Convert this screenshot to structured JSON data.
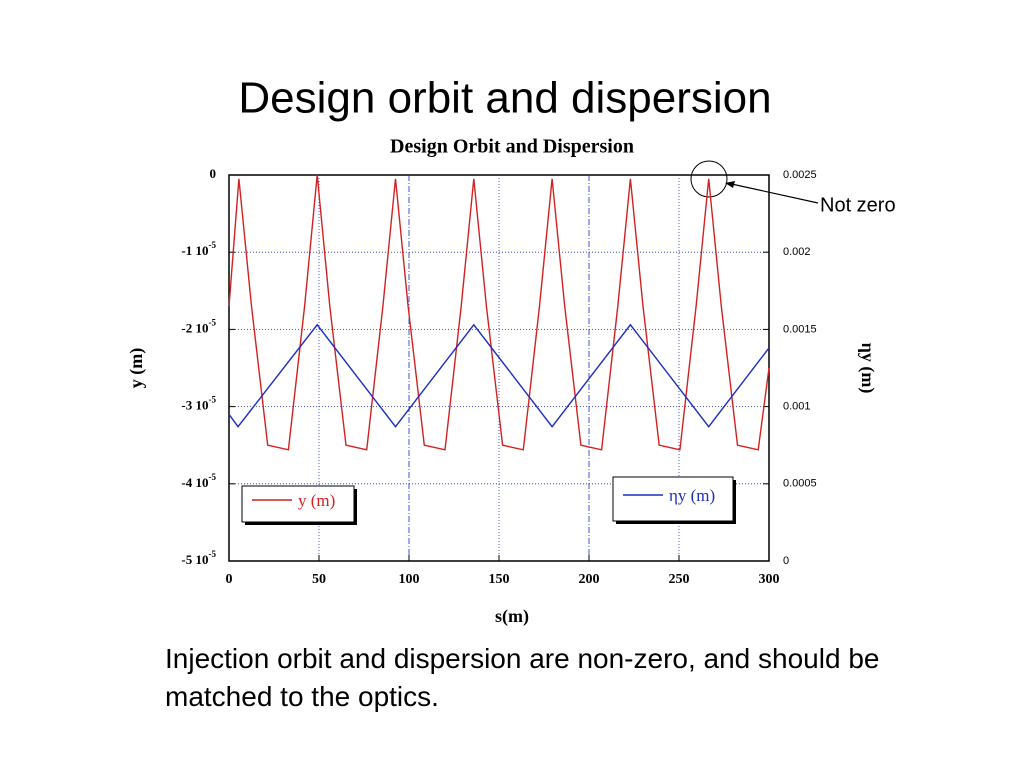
{
  "slide_title": "Design orbit and dispersion",
  "chart_data": {
    "type": "line",
    "title": "Design Orbit and Dispersion",
    "xlabel": "s(m)",
    "ylabel": "y (m)",
    "y2label": "ηy (m)",
    "xlim": [
      0,
      300
    ],
    "xticks": [
      0,
      50,
      100,
      150,
      200,
      250,
      300
    ],
    "ylim": [
      -5e-05,
      0
    ],
    "yticks": [
      {
        "value": -5e-05,
        "label": "-5 10-5"
      },
      {
        "value": -4e-05,
        "label": "-4 10-5"
      },
      {
        "value": -3e-05,
        "label": "-3 10-5"
      },
      {
        "value": -2e-05,
        "label": "-2 10-5"
      },
      {
        "value": -1e-05,
        "label": "-1 10-5"
      },
      0
    ],
    "y2lim": [
      0,
      0.0025
    ],
    "y2ticks": [
      0,
      0.0005,
      0.001,
      0.0015,
      0.002,
      0.0025
    ],
    "grid": true,
    "series": [
      {
        "name": "y (m)",
        "color": "#d42020",
        "x": [
          0,
          5.5,
          12.5,
          21.5,
          33,
          42,
          49,
          56,
          65,
          76.5,
          85.5,
          92.5,
          99.5,
          108.5,
          120,
          129,
          136,
          143,
          152,
          163.5,
          172.5,
          179.5,
          186.5,
          195.5,
          207,
          216,
          223,
          230,
          239,
          250.5,
          259.5,
          266.5,
          273.5,
          282.5,
          294,
          300
        ],
        "values": [
          -1.7e-05,
          -5e-07,
          -1.7e-05,
          -3.5e-05,
          -3.56e-05,
          -1.7e-05,
          0,
          -1.7e-05,
          -3.5e-05,
          -3.56e-05,
          -1.7e-05,
          -5e-07,
          -1.7e-05,
          -3.5e-05,
          -3.56e-05,
          -1.7e-05,
          -5e-07,
          -1.7e-05,
          -3.5e-05,
          -3.56e-05,
          -1.7e-05,
          -5e-07,
          -1.7e-05,
          -3.5e-05,
          -3.56e-05,
          -1.7e-05,
          -5e-07,
          -1.7e-05,
          -3.5e-05,
          -3.56e-05,
          -1.7e-05,
          -5e-07,
          -1.7e-05,
          -3.5e-05,
          -3.56e-05,
          -2.5e-05
        ]
      },
      {
        "name": "ηy (m)",
        "color": "#1a2ec0",
        "axis": "y2",
        "x": [
          0,
          5,
          49,
          92.5,
          136,
          179.5,
          223,
          266.5,
          300
        ],
        "values": [
          0.00095,
          0.00087,
          0.00153,
          0.00087,
          0.00153,
          0.00087,
          0.00153,
          0.00087,
          0.00138
        ]
      }
    ],
    "annotation": "Not zero"
  },
  "body_text": "Injection orbit and dispersion are non-zero, and should be matched to the optics."
}
